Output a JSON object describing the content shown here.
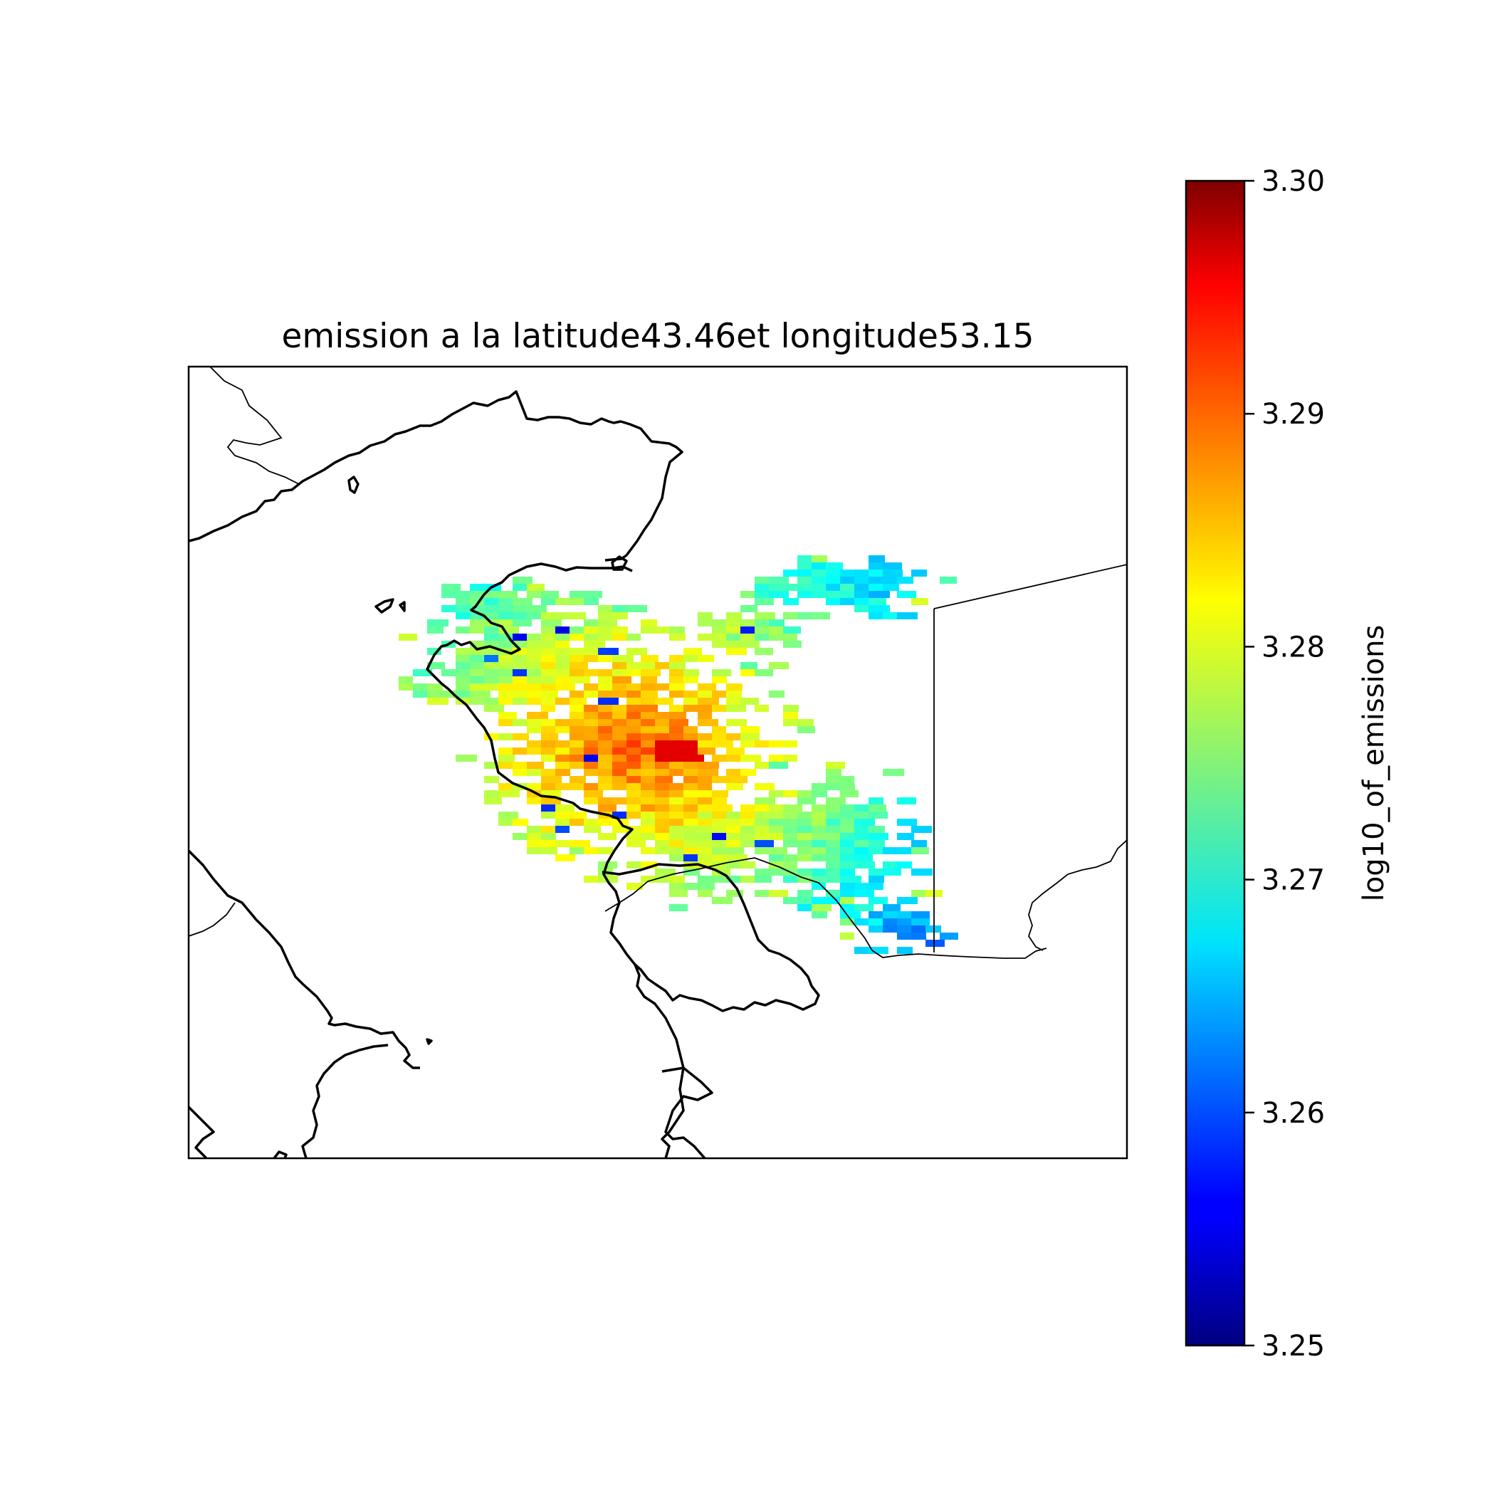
{
  "title": "emission a la latitude43.46et longitude53.15",
  "chart_data": {
    "type": "heatmap",
    "title": "emission a la latitude43.46et longitude53.15",
    "colormap": "jet",
    "colorbar": {
      "label": "log10_of_emissions",
      "vmin": 3.25,
      "vmax": 3.3,
      "ticks": [
        "3.30",
        "3.29",
        "3.28",
        "3.27",
        "3.26",
        "3.25"
      ],
      "tick_values": [
        3.3,
        3.29,
        3.28,
        3.27,
        3.26,
        3.25
      ],
      "placement": "right"
    },
    "map": {
      "features": [
        "coastlines",
        "country borders"
      ],
      "grid": false,
      "ticks_shown": false
    },
    "colors": {
      "coastline": "#000000",
      "border": "#000000",
      "frame": "#000000"
    }
  }
}
